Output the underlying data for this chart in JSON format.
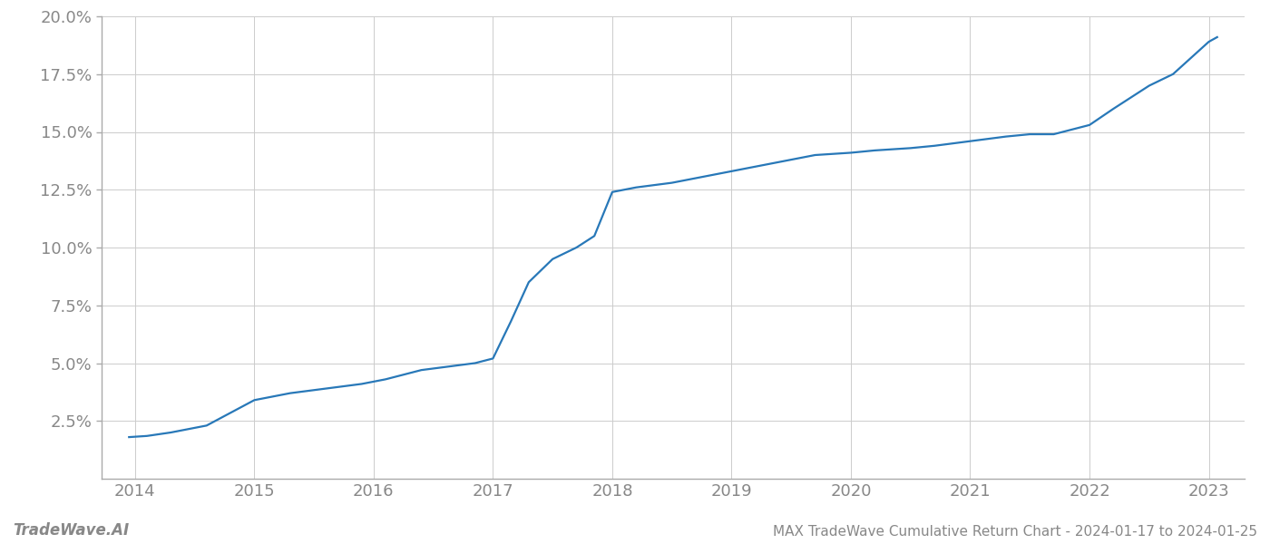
{
  "x_years": [
    2013.95,
    2014.1,
    2014.3,
    2014.6,
    2015.0,
    2015.3,
    2015.6,
    2015.9,
    2016.1,
    2016.25,
    2016.4,
    2016.55,
    2016.7,
    2016.85,
    2017.0,
    2017.15,
    2017.3,
    2017.5,
    2017.7,
    2017.85,
    2018.0,
    2018.2,
    2018.5,
    2018.7,
    2019.0,
    2019.2,
    2019.5,
    2019.7,
    2020.0,
    2020.2,
    2020.5,
    2020.7,
    2021.0,
    2021.15,
    2021.3,
    2021.5,
    2021.7,
    2022.0,
    2022.2,
    2022.5,
    2022.7,
    2023.0,
    2023.07
  ],
  "y_values": [
    0.018,
    0.0185,
    0.02,
    0.023,
    0.034,
    0.037,
    0.039,
    0.041,
    0.043,
    0.045,
    0.047,
    0.048,
    0.049,
    0.05,
    0.052,
    0.068,
    0.085,
    0.095,
    0.1,
    0.105,
    0.124,
    0.126,
    0.128,
    0.13,
    0.133,
    0.135,
    0.138,
    0.14,
    0.141,
    0.142,
    0.143,
    0.144,
    0.146,
    0.147,
    0.148,
    0.149,
    0.149,
    0.153,
    0.16,
    0.17,
    0.175,
    0.189,
    0.191
  ],
  "x_ticks": [
    2014,
    2015,
    2016,
    2017,
    2018,
    2019,
    2020,
    2021,
    2022,
    2023
  ],
  "y_ticks": [
    0.025,
    0.05,
    0.075,
    0.1,
    0.125,
    0.15,
    0.175,
    0.2
  ],
  "y_tick_labels": [
    "2.5%",
    "5.0%",
    "7.5%",
    "10.0%",
    "12.5%",
    "15.0%",
    "17.5%",
    "20.0%"
  ],
  "line_color": "#2878b8",
  "line_width": 1.6,
  "background_color": "#ffffff",
  "grid_color": "#cccccc",
  "axis_label_color": "#888888",
  "footer_left": "TradeWave.AI",
  "footer_right": "MAX TradeWave Cumulative Return Chart - 2024-01-17 to 2024-01-25",
  "xlim": [
    2013.72,
    2023.3
  ],
  "ylim": [
    0.0,
    0.2
  ]
}
